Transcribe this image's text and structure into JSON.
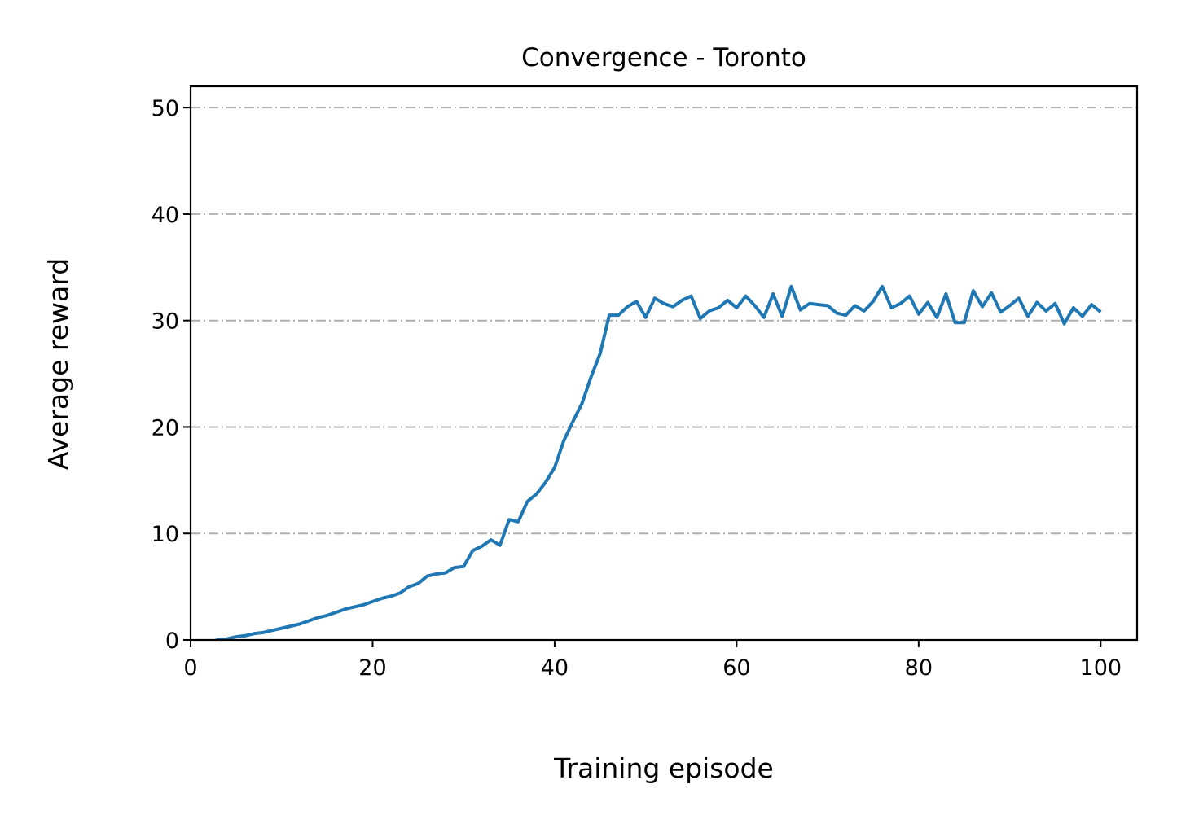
{
  "chart_data": {
    "type": "line",
    "title": "Convergence - Toronto",
    "xlabel": "Training episode",
    "ylabel": "Average reward",
    "xlim": [
      0,
      104
    ],
    "ylim": [
      0,
      52
    ],
    "xticks": [
      0,
      20,
      40,
      60,
      80,
      100
    ],
    "yticks": [
      0,
      10,
      20,
      30,
      40,
      50
    ],
    "grid": "y-axis, dash-dot, gray",
    "line_color": "#1f77b4",
    "grid_color": "#b0b0b0",
    "series": [
      {
        "x": [
          1,
          2,
          3,
          4,
          5,
          6,
          7,
          8,
          9,
          10,
          11,
          12,
          13,
          14,
          15,
          16,
          17,
          18,
          19,
          20,
          21,
          22,
          23,
          24,
          25,
          26,
          27,
          28,
          29,
          30,
          31,
          32,
          33,
          34,
          35,
          36,
          37,
          38,
          39,
          40,
          41,
          42,
          43,
          44,
          45,
          46,
          47,
          48,
          49,
          50,
          51,
          52,
          53,
          54,
          55,
          56,
          57,
          58,
          59,
          60,
          61,
          62,
          63,
          64,
          65,
          66,
          67,
          68,
          69,
          70,
          71,
          72,
          73,
          74,
          75,
          76,
          77,
          78,
          79,
          80,
          81,
          82,
          83,
          84,
          85,
          86,
          87,
          88,
          89,
          90,
          91,
          92,
          93,
          94,
          95,
          96,
          97,
          98,
          99,
          100
        ],
        "values": [
          -0.3,
          -0.2,
          0.0,
          0.1,
          0.3,
          0.4,
          0.6,
          0.7,
          0.9,
          1.1,
          1.3,
          1.5,
          1.8,
          2.1,
          2.3,
          2.6,
          2.9,
          3.1,
          3.3,
          3.6,
          3.9,
          4.1,
          4.4,
          5.0,
          5.3,
          6.0,
          6.2,
          6.3,
          6.8,
          6.9,
          8.4,
          8.8,
          9.4,
          8.9,
          11.3,
          11.1,
          13.0,
          13.7,
          14.8,
          16.2,
          18.7,
          20.5,
          22.2,
          24.7,
          26.9,
          30.5,
          30.5,
          31.3,
          31.8,
          30.3,
          32.1,
          31.6,
          31.3,
          31.9,
          32.3,
          30.2,
          30.9,
          31.2,
          31.9,
          31.2,
          32.3,
          31.4,
          30.3,
          32.5,
          30.4,
          33.2,
          31.0,
          31.6,
          31.5,
          31.4,
          30.7,
          30.5,
          31.4,
          30.9,
          31.8,
          33.2,
          31.2,
          31.6,
          32.3,
          30.6,
          31.7,
          30.3,
          32.5,
          29.8,
          29.8,
          32.8,
          31.3,
          32.6,
          30.8,
          31.4,
          32.1,
          30.4,
          31.7,
          30.9,
          31.6,
          29.7,
          31.2,
          30.4,
          31.5,
          30.8
        ]
      }
    ]
  }
}
